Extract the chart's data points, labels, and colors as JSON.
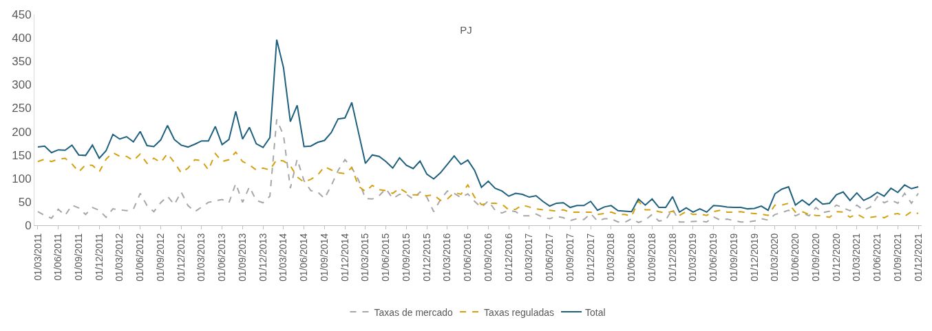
{
  "chart_data": {
    "type": "line",
    "title": "PJ",
    "legend": "bottom",
    "marker": "none",
    "categories": [
      "01/03/2011",
      null,
      null,
      "01/06/2011",
      null,
      null,
      "01/09/2011",
      null,
      null,
      "01/12/2011",
      null,
      null,
      "01/03/2012",
      null,
      null,
      "01/06/2012",
      null,
      null,
      "01/09/2012",
      null,
      null,
      "01/12/2012",
      null,
      null,
      "01/03/2013",
      null,
      null,
      "01/06/2013",
      null,
      null,
      "01/09/2013",
      null,
      null,
      "01/12/2013",
      null,
      null,
      "01/03/2014",
      null,
      null,
      "01/06/2014",
      null,
      null,
      "01/09/2014",
      null,
      null,
      "01/12/2014",
      null,
      null,
      "01/03/2015",
      null,
      null,
      "01/06/2015",
      null,
      null,
      "01/09/2015",
      null,
      null,
      "01/12/2015",
      null,
      null,
      "01/03/2016",
      null,
      null,
      "01/06/2016",
      null,
      null,
      "01/09/2016",
      null,
      null,
      "01/12/2016",
      null,
      null,
      "01/03/2017",
      null,
      null,
      "01/06/2017",
      null,
      null,
      "01/09/2017",
      null,
      null,
      "01/12/2017",
      null,
      null,
      "01/03/2018",
      null,
      null,
      "01/06/2018",
      null,
      null,
      "01/09/2018",
      null,
      null,
      "01/12/2018",
      null,
      null,
      "01/03/2019",
      null,
      null,
      "01/06/2019",
      null,
      null,
      "01/09/2019",
      null,
      null,
      "01/12/2019",
      null,
      null,
      "01/03/2020",
      null,
      null,
      "01/06/2020",
      null,
      null,
      "01/09/2020",
      null,
      null,
      "01/12/2020",
      null,
      null,
      "01/03/2021",
      null,
      null,
      "01/06/2021",
      null,
      null,
      "01/09/2021",
      null,
      null,
      "01/12/2021"
    ],
    "ylim": [
      0,
      450
    ],
    "yticks": [
      0,
      50,
      100,
      150,
      200,
      250,
      300,
      350,
      400,
      450
    ],
    "series": [
      {
        "name": "Taxas de mercado",
        "color": "#a6a6a6",
        "line_style": "dashed",
        "values": [
          29,
          21,
          15,
          34,
          21,
          43,
          37,
          23,
          38,
          32,
          17,
          35,
          33,
          31,
          34,
          68,
          42,
          29,
          48,
          62,
          44,
          71,
          42,
          29,
          39,
          49,
          52,
          55,
          48,
          89,
          49,
          82,
          53,
          48,
          62,
          226,
          192,
          79,
          141,
          95,
          74,
          71,
          57,
          85,
          117,
          140,
          123,
          96,
          57,
          56,
          63,
          78,
          57,
          66,
          66,
          56,
          71,
          60,
          29,
          55,
          73,
          68,
          59,
          67,
          51,
          38,
          52,
          32,
          26,
          32,
          29,
          20,
          20,
          24,
          17,
          14,
          19,
          16,
          10,
          14,
          12,
          25,
          9,
          14,
          14,
          7,
          6,
          14,
          6,
          11,
          23,
          9,
          11,
          35,
          7,
          7,
          8,
          9,
          7,
          18,
          11,
          13,
          10,
          7,
          7,
          9,
          14,
          11,
          23,
          27,
          32,
          20,
          27,
          20,
          38,
          27,
          30,
          43,
          37,
          31,
          43,
          32,
          39,
          61,
          48,
          54,
          47,
          68,
          47,
          68
        ]
      },
      {
        "name": "Taxas reguladas",
        "color": "#d4a00f",
        "line_style": "dashed",
        "values": [
          136,
          141,
          136,
          141,
          143,
          131,
          114,
          129,
          128,
          114,
          141,
          155,
          147,
          147,
          138,
          152,
          132,
          143,
          134,
          153,
          134,
          112,
          122,
          140,
          138,
          118,
          153,
          136,
          140,
          156,
          136,
          129,
          118,
          122,
          118,
          140,
          137,
          127,
          103,
          92,
          98,
          107,
          125,
          118,
          112,
          110,
          123,
          83,
          72,
          85,
          76,
          74,
          68,
          79,
          70,
          65,
          65,
          63,
          65,
          53,
          56,
          70,
          66,
          86,
          60,
          44,
          47,
          47,
          45,
          33,
          34,
          43,
          39,
          35,
          33,
          32,
          30,
          33,
          28,
          28,
          28,
          28,
          23,
          25,
          28,
          23,
          23,
          19,
          52,
          33,
          33,
          29,
          26,
          30,
          21,
          29,
          23,
          24,
          21,
          29,
          32,
          28,
          28,
          29,
          26,
          25,
          24,
          21,
          43,
          43,
          47,
          28,
          29,
          23,
          21,
          20,
          17,
          29,
          28,
          17,
          24,
          16,
          17,
          19,
          16,
          23,
          25,
          19,
          29,
          25
        ]
      },
      {
        "name": "Total",
        "color": "#1d5f7d",
        "line_style": "solid",
        "values": [
          167,
          169,
          155,
          161,
          160,
          171,
          150,
          149,
          171,
          143,
          159,
          194,
          184,
          189,
          178,
          200,
          170,
          168,
          182,
          213,
          183,
          171,
          167,
          173,
          180,
          180,
          211,
          172,
          183,
          243,
          184,
          209,
          174,
          166,
          187,
          396,
          336,
          221,
          256,
          168,
          169,
          177,
          181,
          198,
          227,
          229,
          262,
          197,
          132,
          150,
          147,
          136,
          122,
          144,
          128,
          121,
          137,
          109,
          99,
          112,
          130,
          148,
          130,
          139,
          117,
          81,
          94,
          79,
          73,
          62,
          68,
          66,
          60,
          63,
          51,
          41,
          47,
          48,
          38,
          42,
          42,
          51,
          32,
          39,
          42,
          31,
          30,
          29,
          56,
          43,
          56,
          38,
          38,
          61,
          28,
          37,
          28,
          35,
          28,
          42,
          41,
          39,
          38,
          38,
          35,
          36,
          41,
          32,
          67,
          77,
          82,
          43,
          54,
          43,
          57,
          45,
          47,
          65,
          71,
          53,
          69,
          53,
          60,
          70,
          62,
          79,
          70,
          86,
          78,
          82
        ]
      }
    ]
  }
}
